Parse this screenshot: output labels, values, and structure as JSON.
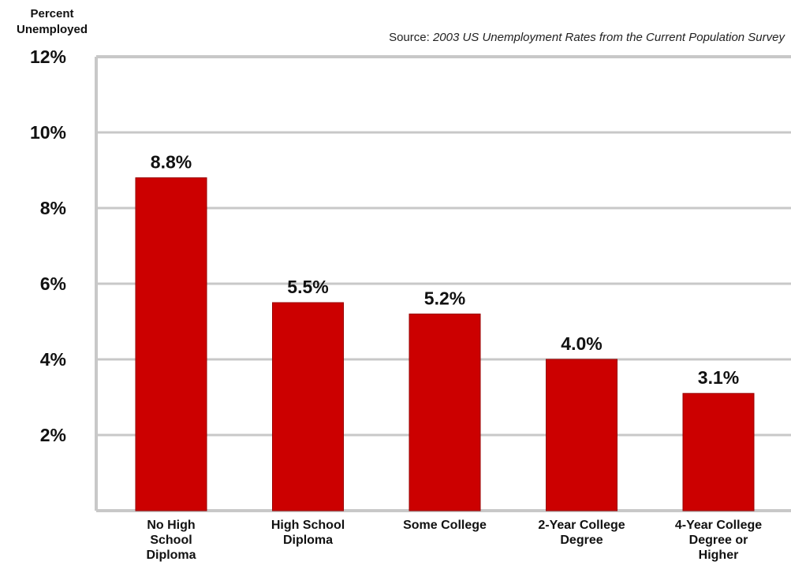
{
  "chart_data": {
    "type": "bar",
    "ylabel": "Percent\nUnemployed",
    "source": "Source: 2003 US Unemployment Rates from the Current Population Survey",
    "source_prefix": "Source: ",
    "source_text": "2003 US Unemployment Rates from the Current Population Survey",
    "categories": [
      "No High School Diploma",
      "High School Diploma",
      "Some College",
      "2-Year College Degree",
      "4-Year College Degree or Higher"
    ],
    "category_label_lines": [
      [
        "No High",
        "School",
        "Diploma"
      ],
      [
        "High School",
        "Diploma"
      ],
      [
        "Some College"
      ],
      [
        "2-Year College",
        "Degree"
      ],
      [
        "4-Year College",
        "Degree or",
        "Higher"
      ]
    ],
    "values": [
      8.8,
      5.5,
      5.2,
      4.0,
      3.1
    ],
    "value_labels": [
      "8.8%",
      "5.5%",
      "5.2%",
      "4.0%",
      "3.1%"
    ],
    "ylim": [
      0,
      12
    ],
    "yticks": [
      2,
      4,
      6,
      8,
      10,
      12
    ],
    "ytick_labels": [
      "2%",
      "4%",
      "6%",
      "8%",
      "10%",
      "12%"
    ],
    "grid": true,
    "legend": "none",
    "colors": {
      "bar": "#cc0000",
      "bar_edge": "#990000",
      "grid": "#c8c8c8",
      "frame": "#c8c8c8",
      "text": "#111111"
    }
  }
}
